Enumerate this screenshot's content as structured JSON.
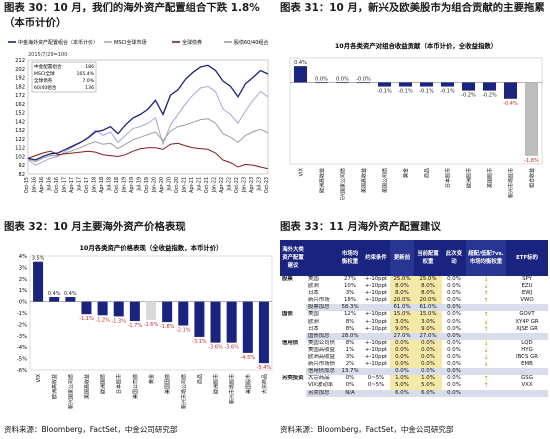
{
  "captions": {
    "c30": "图表 30：10 月，我们的海外资产配置组合下跌 1.8%（本币计价）",
    "c31": "图表 31：10 月，新兴及欧美股市为组合贡献的主要拖累",
    "c32": "图表 32：10 月主要海外资产价格表现",
    "c33": "图表 33：11 月海外资产配置建议"
  },
  "sources": {
    "s1": "资料来源：Bloomberg，FactSet，中金公司研究部",
    "s2": "资料来源：Bloomberg，FactSet，中金公司研究部",
    "s3": "资料来源：Bloomberg，FactSet，中金公司研究部",
    "s4": "资料来源：Bloomberg，FactSet，中金公司研究部"
  },
  "chart_data": [
    {
      "type": "line",
      "legend": [
        "中金海外资产配置组合（本币计价）",
        "MSCI全球市场",
        "全球债券",
        "股债60/40组合"
      ],
      "colors": [
        "#1a237e",
        "#9fa8da",
        "#8b1a1a",
        "#9e9e9e"
      ],
      "date_note": "2015/7/29=100",
      "x": [
        "Oct-15",
        "Jan-16",
        "Apr-16",
        "Jul-16",
        "Oct-16",
        "Jan-17",
        "Apr-17",
        "Jul-17",
        "Oct-17",
        "Jan-18",
        "Apr-18",
        "Jul-18",
        "Oct-18",
        "Jan-19",
        "Apr-19",
        "Jul-19",
        "Oct-19",
        "Jan-20",
        "Apr-20",
        "Jul-20",
        "Oct-20",
        "Jan-21",
        "Apr-21",
        "Jul-21",
        "Oct-21",
        "Jan-22",
        "Apr-22",
        "Jul-22",
        "Oct-22",
        "Jan-23",
        "Apr-23",
        "Jul-23",
        "Oct-23"
      ],
      "ylim": [
        82,
        212
      ],
      "yticks": [
        82,
        92,
        102,
        112,
        122,
        132,
        142,
        152,
        162,
        172,
        182,
        192,
        202,
        212
      ],
      "series": [
        {
          "name": "中金海外资产配置组合（本币计价）",
          "values": [
            100,
            98,
            102,
            105,
            106,
            110,
            114,
            118,
            123,
            130,
            132,
            136,
            128,
            138,
            146,
            150,
            156,
            166,
            150,
            172,
            178,
            190,
            198,
            204,
            206,
            200,
            188,
            182,
            170,
            185,
            192,
            200,
            196
          ]
        },
        {
          "name": "MSCI全球市场",
          "values": [
            98,
            92,
            96,
            100,
            102,
            108,
            113,
            118,
            124,
            132,
            126,
            130,
            118,
            126,
            134,
            136,
            140,
            146,
            116,
            138,
            150,
            162,
            172,
            180,
            182,
            176,
            156,
            150,
            140,
            154,
            166,
            176,
            170
          ]
        },
        {
          "name": "全球债券",
          "values": [
            100,
            103,
            106,
            108,
            104,
            105,
            106,
            107,
            108,
            107,
            104,
            103,
            102,
            104,
            108,
            111,
            112,
            112,
            110,
            116,
            117,
            114,
            112,
            111,
            110,
            106,
            98,
            95,
            90,
            93,
            92,
            90,
            88
          ]
        },
        {
          "name": "股债60/40组合",
          "values": [
            99,
            96,
            100,
            103,
            103,
            106,
            109,
            112,
            116,
            119,
            116,
            117,
            111,
            116,
            121,
            124,
            127,
            130,
            120,
            131,
            136,
            138,
            141,
            144,
            145,
            140,
            128,
            124,
            118,
            126,
            130,
            133,
            129
          ]
        }
      ],
      "table": {
        "headers": [
          "",
          ""
        ],
        "rows": [
          [
            "中金配置组合",
            "186"
          ],
          [
            "MSCI全球",
            "165.4%"
          ],
          [
            "全球债券",
            "7.0%"
          ],
          [
            "60/40组合",
            "136"
          ]
        ]
      }
    },
    {
      "type": "bar",
      "title": "10月各类资产对组合收益贡献（本币计价，全收益指数）",
      "categories": [
        "VIX",
        "欧洲高收益",
        "新兴国家公司债",
        "美国高收益",
        "美国公司债",
        "黄金",
        "商品",
        "日本股市",
        "欧洲股市",
        "美国股市",
        "新兴市场股市",
        "组合收益"
      ],
      "values": [
        0.4,
        0.0,
        0.0,
        -0.0,
        -0.1,
        -0.1,
        -0.1,
        -0.1,
        -0.2,
        -0.2,
        -0.4,
        -1.8
      ],
      "labels": [
        "0.4%",
        "0.0%",
        "0.0%",
        "-0.0%",
        "-0.1%",
        "-0.1%",
        "-0.1%",
        "-0.1%",
        "-0.2%",
        "-0.2%",
        "-0.4%",
        "-1.8%"
      ],
      "ylim": [
        -2.0,
        0.6
      ]
    },
    {
      "type": "bar",
      "title": "10月各类资产价格表现（全收益指数，本币计价）",
      "categories": [
        "VIX",
        "欧洲高收益",
        "新兴国家公司债",
        "美国高收益",
        "欧洲国债",
        "日本股市",
        "美国公司债",
        "黄金",
        "美国国债",
        "新兴市场公司债",
        "商品",
        "欧洲股市",
        "新兴市场股市",
        "美国股市",
        "大宗商品"
      ],
      "values": [
        3.5,
        0.4,
        0.4,
        -1.1,
        -1.2,
        -1.3,
        -1.7,
        -1.6,
        -1.8,
        -2.1,
        -3.1,
        -3.6,
        -3.6,
        -4.5,
        -5.4
      ],
      "labels": [
        "3.5%",
        "0.4%",
        "0.4%",
        "-1.1%",
        "-1.2%",
        "-1.3%",
        "-1.7%",
        "-1.6%",
        "-1.8%",
        "-2.1%",
        "-3.1%",
        "-3.6%",
        "-3.6%",
        "-4.5%",
        "-5.4%"
      ],
      "yticks": [
        4,
        3,
        2,
        1,
        0,
        -1,
        -2,
        -3,
        -4,
        -5,
        -6
      ],
      "ylim": [
        -6,
        4
      ]
    }
  ],
  "allocation": {
    "headers": [
      "海外大类资产配置建议",
      "",
      "市场均衡权重",
      "约束条件",
      "更新前",
      "当前配置权重",
      "此次变动",
      "超配/低配?vs. 市场均衡权重",
      "ETF标的"
    ],
    "rows": [
      {
        "group": "股票",
        "name": "美国",
        "eq": "27%",
        "cons": "+-10ppt",
        "prev": "25.0%",
        "cur": "25.0%",
        "chg": "0.0%",
        "arrow": "↓",
        "etf": "SPY"
      },
      {
        "group": "",
        "name": "欧洲",
        "eq": "10%",
        "cons": "+-10ppt",
        "prev": "8.0%",
        "cur": "8.0%",
        "chg": "0.0%",
        "arrow": "↓",
        "etf": "EZU"
      },
      {
        "group": "",
        "name": "日本",
        "eq": "3%",
        "cons": "+-10ppt",
        "prev": "8.0%",
        "cur": "8.0%",
        "chg": "0.0%",
        "arrow": "↑",
        "etf": "EWJ"
      },
      {
        "group": "",
        "name": "新兴市场",
        "eq": "18%",
        "cons": "+-10ppt",
        "prev": "20.0%",
        "cur": "20.0%",
        "chg": "0.0%",
        "arrow": "↑",
        "etf": "VWO"
      },
      {
        "group": "",
        "name": "股票加总",
        "eq": "58.3%",
        "cons": "",
        "prev": "61.0%",
        "cur": "61.0%",
        "chg": "0.0%",
        "arrow": "",
        "etf": "",
        "sub": true
      },
      {
        "group": "国债",
        "name": "美国",
        "eq": "12%",
        "cons": "+-10ppt",
        "prev": "15.0%",
        "cur": "15.0%",
        "chg": "0.0%",
        "arrow": "↑",
        "etf": "GOVT"
      },
      {
        "group": "",
        "name": "欧洲",
        "eq": "8%",
        "cons": "+-10ppt",
        "prev": "3.0%",
        "cur": "3.0%",
        "chg": "0.0%",
        "arrow": "↓",
        "etf": "XY4P GR"
      },
      {
        "group": "",
        "name": "日本",
        "eq": "8%",
        "cons": "+-10ppt",
        "prev": "9.0%",
        "cur": "9.0%",
        "chg": "0.0%",
        "arrow": "↑",
        "etf": "XJSE GR"
      },
      {
        "group": "",
        "name": "国债加总",
        "eq": "28.0%",
        "cons": "",
        "prev": "27.0%",
        "cur": "27.0%",
        "chg": "0.0%",
        "arrow": "",
        "etf": "",
        "sub": true
      },
      {
        "group": "信用债",
        "name": "美国公司债",
        "eq": "8%",
        "cons": "+-10ppt",
        "prev": "0.0%",
        "cur": "0.0%",
        "chg": "0.0%",
        "arrow": "↓",
        "etf": "LQD"
      },
      {
        "group": "",
        "name": "美国高收益",
        "eq": "1%",
        "cons": "+-10ppt",
        "prev": "0.0%",
        "cur": "0.0%",
        "chg": "0.0%",
        "arrow": "↓",
        "etf": "HYG"
      },
      {
        "group": "",
        "name": "欧洲高收益",
        "eq": "3%",
        "cons": "+-10ppt",
        "prev": "0.0%",
        "cur": "0.0%",
        "chg": "0.0%",
        "arrow": "↓",
        "etf": "IBCS GR"
      },
      {
        "group": "",
        "name": "新兴市场债",
        "eq": "2%",
        "cons": "+-10ppt",
        "prev": "0.0%",
        "cur": "0.0%",
        "chg": "0.0%",
        "arrow": "↓",
        "etf": "EMB"
      },
      {
        "group": "",
        "name": "信用债加总",
        "eq": "13.7%",
        "cons": "",
        "prev": "0.0%",
        "cur": "0.0%",
        "chg": "0.0%",
        "arrow": "",
        "etf": "",
        "sub": true
      },
      {
        "group": "另类投资",
        "name": "大宗商品",
        "eq": "0%",
        "cons": "0~5%",
        "prev": "1.0%",
        "cur": "1.0%",
        "chg": "0.0%",
        "arrow": "↑",
        "etf": "GSG"
      },
      {
        "group": "",
        "name": "VIX波动率",
        "eq": "0%",
        "cons": "0~5%",
        "prev": "5.0%",
        "cur": "5.0%",
        "chg": "0.0%",
        "arrow": "↑",
        "etf": "VXX"
      },
      {
        "group": "",
        "name": "另类加总",
        "eq": "N/A",
        "cons": "",
        "prev": "6.0%",
        "cur": "6.0%",
        "chg": "0.0%",
        "arrow": "",
        "etf": "",
        "sub": true
      }
    ]
  }
}
